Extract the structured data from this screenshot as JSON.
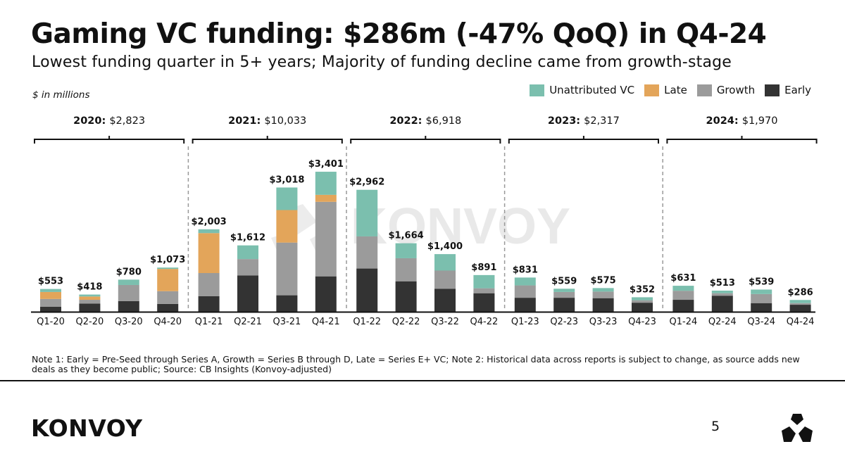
{
  "slide": {
    "title": "Gaming VC funding: $286m (-47% QoQ) in Q4-24",
    "subtitle": "Lowest funding quarter in 5+ years; Majority of funding decline came from growth-stage",
    "units_note": "$ in millions",
    "footnote": "Note 1: Early = Pre-Seed through Series A, Growth = Series B through D, Late = Series E+ VC; Note 2: Historical data across reports is subject to change, as source adds new deals as they become public; Source: CB Insights (Konvoy-adjusted)",
    "brand": "KONVOY",
    "watermark": "KONVOY",
    "page_number": "5"
  },
  "legend": [
    {
      "name": "Unattributed VC",
      "color": "#7bbfae"
    },
    {
      "name": "Late",
      "color": "#e3a55a"
    },
    {
      "name": "Growth",
      "color": "#9b9b9b"
    },
    {
      "name": "Early",
      "color": "#333333"
    }
  ],
  "chart_data": {
    "type": "bar",
    "stacked": true,
    "categories": [
      "Q1-20",
      "Q2-20",
      "Q3-20",
      "Q4-20",
      "Q1-21",
      "Q2-21",
      "Q3-21",
      "Q4-21",
      "Q1-22",
      "Q2-22",
      "Q3-22",
      "Q4-22",
      "Q1-23",
      "Q2-23",
      "Q3-23",
      "Q4-23",
      "Q1-24",
      "Q2-24",
      "Q3-24",
      "Q4-24"
    ],
    "series": [
      {
        "name": "Early",
        "color": "#333333",
        "values": [
          120,
          200,
          260,
          190,
          380,
          880,
          400,
          860,
          1050,
          740,
          560,
          450,
          340,
          340,
          330,
          220,
          290,
          390,
          210,
          170
        ]
      },
      {
        "name": "Growth",
        "color": "#9b9b9b",
        "values": [
          190,
          90,
          390,
          310,
          560,
          400,
          1280,
          1810,
          780,
          560,
          440,
          120,
          300,
          140,
          160,
          60,
          220,
          60,
          220,
          40
        ]
      },
      {
        "name": "Late",
        "color": "#e3a55a",
        "values": [
          170,
          80,
          0,
          540,
          970,
          0,
          790,
          170,
          0,
          0,
          0,
          0,
          0,
          0,
          0,
          0,
          0,
          0,
          0,
          0
        ]
      },
      {
        "name": "Unattributed VC",
        "color": "#7bbfae",
        "values": [
          73,
          48,
          130,
          33,
          93,
          332,
          548,
          561,
          1132,
          364,
          400,
          321,
          191,
          79,
          85,
          72,
          121,
          63,
          109,
          76
        ]
      }
    ],
    "totals": [
      553,
      418,
      780,
      1073,
      2003,
      1612,
      3018,
      3401,
      2962,
      1664,
      1400,
      891,
      831,
      559,
      575,
      352,
      631,
      513,
      539,
      286
    ],
    "total_labels": [
      "$553",
      "$418",
      "$780",
      "$1,073",
      "$2,003",
      "$1,612",
      "$3,018",
      "$3,401",
      "$2,962",
      "$1,664",
      "$1,400",
      "$891",
      "$831",
      "$559",
      "$575",
      "$352",
      "$631",
      "$513",
      "$539",
      "$286"
    ],
    "years": [
      {
        "label": "2020:",
        "total": "$2,823"
      },
      {
        "label": "2021:",
        "total": "$10,033"
      },
      {
        "label": "2022:",
        "total": "$6,918"
      },
      {
        "label": "2023:",
        "total": "$2,317"
      },
      {
        "label": "2024:",
        "total": "$1,970"
      }
    ],
    "ylim": [
      0,
      3500
    ],
    "grid": false,
    "legend_position": "top-right"
  }
}
